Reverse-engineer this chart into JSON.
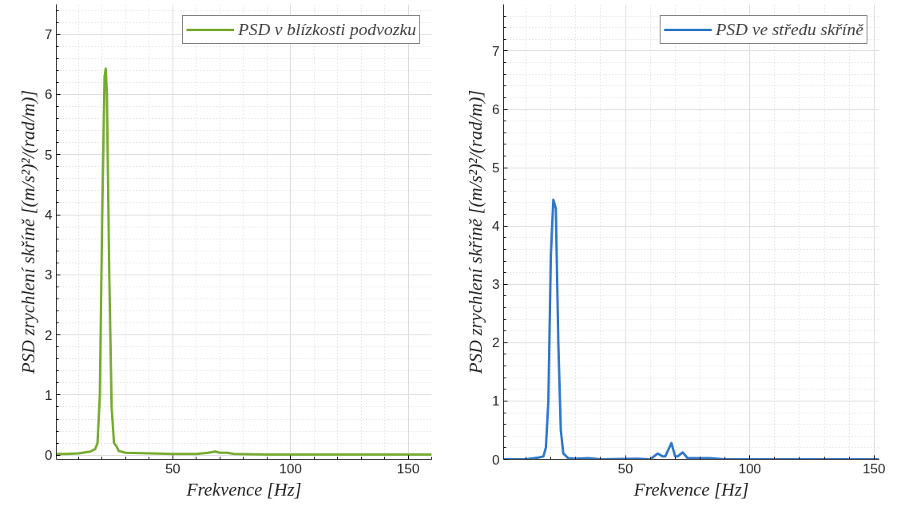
{
  "chart_data": [
    {
      "type": "line",
      "xlabel": "Frekvence [Hz]",
      "ylabel": "PSD zrychlení skříně [(m/s²)²/(rad/m)]",
      "xlim": [
        0.5,
        160
      ],
      "ylim": [
        -0.07,
        7.5
      ],
      "xticks": [
        50,
        100,
        150
      ],
      "yticks": [
        0,
        1,
        2,
        3,
        4,
        5,
        6,
        7
      ],
      "grid": true,
      "legend": "top right",
      "line_style": "solid",
      "marker": "none",
      "series": [
        {
          "name": "PSD v blízkosti podvozku",
          "color": "#77ac30",
          "x": [
            0.5,
            5,
            10,
            15,
            17,
            18,
            19,
            20,
            21,
            21.5,
            22,
            23,
            24,
            25,
            26,
            27,
            30,
            40,
            50,
            60,
            65,
            68,
            70,
            73,
            76,
            90,
            120,
            160
          ],
          "values": [
            0.02,
            0.02,
            0.03,
            0.06,
            0.1,
            0.2,
            1.0,
            4.0,
            6.3,
            6.43,
            6.0,
            3.0,
            0.8,
            0.2,
            0.15,
            0.07,
            0.04,
            0.03,
            0.02,
            0.02,
            0.04,
            0.06,
            0.04,
            0.04,
            0.02,
            0.01,
            0.01,
            0.01
          ]
        }
      ]
    },
    {
      "type": "line",
      "xlabel": "Frekvence [Hz]",
      "ylabel": "PSD zrychlení skříně [(m/s²)²/(rad/m)]",
      "xlim": [
        1,
        152
      ],
      "ylim": [
        0,
        7.8
      ],
      "xticks": [
        50,
        100,
        150
      ],
      "yticks": [
        0,
        1,
        2,
        3,
        4,
        5,
        6,
        7
      ],
      "grid": true,
      "legend": "top right",
      "line_style": "solid",
      "marker": "none",
      "series": [
        {
          "name": "PSD ve středu skříně",
          "color": "#2f78cc",
          "x": [
            1,
            10,
            15,
            17,
            18,
            19,
            20,
            21,
            22,
            23,
            24,
            25,
            27,
            30,
            35,
            40,
            55,
            60,
            63,
            65,
            66,
            68.5,
            70,
            71,
            73,
            75,
            84,
            90,
            152
          ],
          "values": [
            0,
            0,
            0.03,
            0.05,
            0.2,
            1.0,
            3.5,
            4.45,
            4.3,
            2.0,
            0.5,
            0.1,
            0.02,
            0.01,
            0.02,
            0,
            0.01,
            0,
            0.1,
            0.05,
            0.05,
            0.28,
            0.05,
            0.05,
            0.12,
            0.02,
            0.02,
            0,
            0
          ]
        }
      ]
    }
  ]
}
